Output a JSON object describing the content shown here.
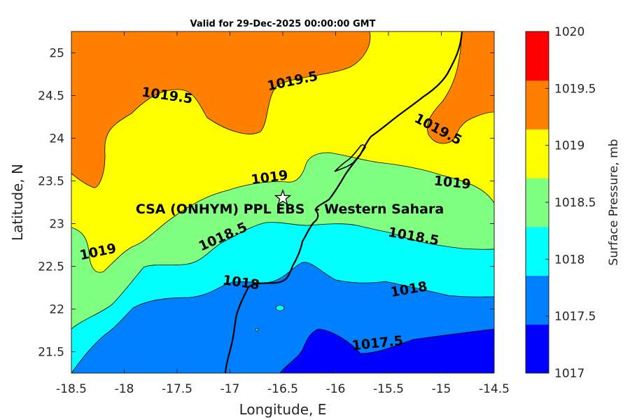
{
  "title": "Valid for 29-Dec-2025 00:00:00 GMT",
  "xlabel": "Longitude, E",
  "ylabel": "Latitude, N",
  "xticks": [
    "-18.5",
    "-18",
    "-17.5",
    "-17",
    "-16.5",
    "-16",
    "-15.5",
    "-15",
    "-14.5"
  ],
  "yticks": [
    "21.5",
    "22",
    "22.5",
    "23",
    "23.5",
    "24",
    "24.5",
    "25"
  ],
  "colorbar": {
    "label": "Surface Pressure, mb",
    "ticks": [
      "1017",
      "1017.5",
      "1018",
      "1018.5",
      "1019",
      "1019.5",
      "1020"
    ],
    "colors": [
      "#0000ff",
      "#0080ff",
      "#00ffff",
      "#80ff80",
      "#ffff00",
      "#ff8000",
      "#ff0000"
    ]
  },
  "station": {
    "name": "CSA (ONHYM) PPL EBS  - Western Sahara",
    "lon": -16.5,
    "lat": 23.3
  },
  "contour_labels": [
    {
      "text": "1019.5",
      "lon": -17.6,
      "lat": 24.45
    },
    {
      "text": "1019.5",
      "lon": -16.4,
      "lat": 24.62
    },
    {
      "text": "1019.5",
      "lon": -15.05,
      "lat": 24.06
    },
    {
      "text": "1019",
      "lon": -16.62,
      "lat": 23.49
    },
    {
      "text": "1019",
      "lon": -14.9,
      "lat": 23.43
    },
    {
      "text": "1019",
      "lon": -18.24,
      "lat": 22.62
    },
    {
      "text": "1018.5",
      "lon": -17.05,
      "lat": 22.8
    },
    {
      "text": "1018.5",
      "lon": -15.27,
      "lat": 22.8
    },
    {
      "text": "1018",
      "lon": -16.9,
      "lat": 22.26
    },
    {
      "text": "1018",
      "lon": -15.3,
      "lat": 22.18
    },
    {
      "text": "1017.5",
      "lon": -15.6,
      "lat": 21.55
    }
  ],
  "chart_data": {
    "type": "contour-map",
    "variable": "Surface Pressure",
    "units": "mb",
    "xlim": [
      -18.5,
      -14.5
    ],
    "ylim": [
      21.25,
      25.25
    ],
    "levels": [
      1017,
      1017.5,
      1018,
      1018.5,
      1019,
      1019.5,
      1020
    ]
  }
}
